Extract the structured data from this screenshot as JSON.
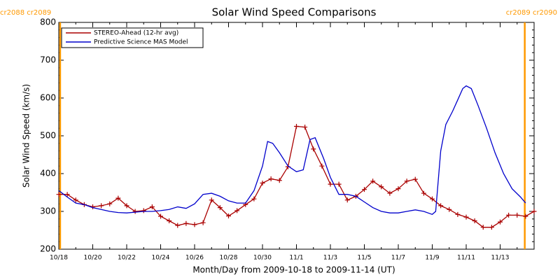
{
  "chart_data": {
    "type": "line",
    "title": "Solar Wind Speed Comparisons",
    "x_label": "Month/Day from 2009-10-18 to 2009-11-14 (UT)",
    "y_label": "Solar Wind Speed (km/s)",
    "xlim": [
      0,
      28
    ],
    "ylim": [
      200,
      800
    ],
    "yticks": [
      200,
      300,
      400,
      500,
      600,
      700,
      800
    ],
    "xticks": [
      {
        "value": 0,
        "label": "10/18"
      },
      {
        "value": 2,
        "label": "10/20"
      },
      {
        "value": 4,
        "label": "10/22"
      },
      {
        "value": 6,
        "label": "10/24"
      },
      {
        "value": 8,
        "label": "10/26"
      },
      {
        "value": 10,
        "label": "10/28"
      },
      {
        "value": 12,
        "label": "10/30"
      },
      {
        "value": 14,
        "label": "11/1"
      },
      {
        "value": 16,
        "label": "11/3"
      },
      {
        "value": 18,
        "label": "11/5"
      },
      {
        "value": 20,
        "label": "11/7"
      },
      {
        "value": 22,
        "label": "11/9"
      },
      {
        "value": 24,
        "label": "11/11"
      },
      {
        "value": 26,
        "label": "11/13"
      }
    ],
    "legend": "upper left",
    "markers": [
      {
        "x": 0.08,
        "label": "cr2088 cr2089",
        "color": "#ff9900"
      },
      {
        "x": 27.45,
        "label": "cr2089 cr2090",
        "color": "#ff9900"
      }
    ],
    "series": [
      {
        "name": "STEREO-Ahead (12-hr avg)",
        "color": "#aa0000",
        "marker": "+",
        "x": [
          0,
          0.5,
          1,
          1.5,
          2,
          2.5,
          3,
          3.5,
          4,
          4.5,
          5,
          5.5,
          6,
          6.5,
          7,
          7.5,
          8,
          8.5,
          9,
          9.5,
          10,
          10.5,
          11,
          11.5,
          12,
          12.5,
          13,
          13.5,
          14,
          14.5,
          15,
          15.5,
          16,
          16.5,
          17,
          17.5,
          18,
          18.5,
          19,
          19.5,
          20,
          20.5,
          21,
          21.5,
          22,
          22.5,
          23,
          23.5,
          24,
          24.5,
          25,
          25.5,
          26,
          26.5,
          27,
          27.5,
          28
        ],
        "values": [
          345,
          345,
          330,
          318,
          312,
          315,
          320,
          335,
          315,
          300,
          302,
          312,
          287,
          275,
          263,
          268,
          265,
          270,
          330,
          310,
          288,
          302,
          318,
          333,
          375,
          386,
          382,
          418,
          525,
          523,
          465,
          420,
          372,
          372,
          330,
          340,
          358,
          380,
          365,
          348,
          360,
          380,
          385,
          348,
          333,
          315,
          305,
          292,
          285,
          275,
          258,
          258,
          272,
          290,
          290,
          287,
          300
        ]
      },
      {
        "name": "Predictive Science MAS Model",
        "color": "#0000cc",
        "x": [
          0,
          0.5,
          1,
          1.5,
          2,
          2.5,
          3,
          3.5,
          4,
          4.5,
          5,
          5.5,
          6,
          6.5,
          7,
          7.5,
          8,
          8.5,
          9,
          9.5,
          10,
          10.5,
          11,
          11.5,
          12,
          12.3,
          12.6,
          13,
          13.5,
          14,
          14.4,
          14.8,
          15.1,
          15.6,
          16,
          16.5,
          17,
          17.5,
          18,
          18.5,
          19,
          19.5,
          20,
          20.5,
          21,
          21.5,
          22,
          22.2,
          22.5,
          22.8,
          23.2,
          23.5,
          23.8,
          24,
          24.3,
          24.7,
          25.2,
          25.7,
          26.2,
          26.7,
          27.2,
          27.5
        ],
        "values": [
          355,
          338,
          322,
          318,
          310,
          305,
          300,
          297,
          296,
          298,
          300,
          300,
          302,
          305,
          312,
          308,
          320,
          345,
          348,
          340,
          328,
          322,
          322,
          355,
          420,
          485,
          480,
          455,
          420,
          405,
          410,
          490,
          495,
          440,
          390,
          345,
          345,
          340,
          325,
          310,
          300,
          296,
          296,
          300,
          304,
          300,
          292,
          300,
          460,
          530,
          565,
          595,
          625,
          632,
          625,
          580,
          520,
          455,
          400,
          360,
          338,
          322
        ]
      }
    ]
  }
}
